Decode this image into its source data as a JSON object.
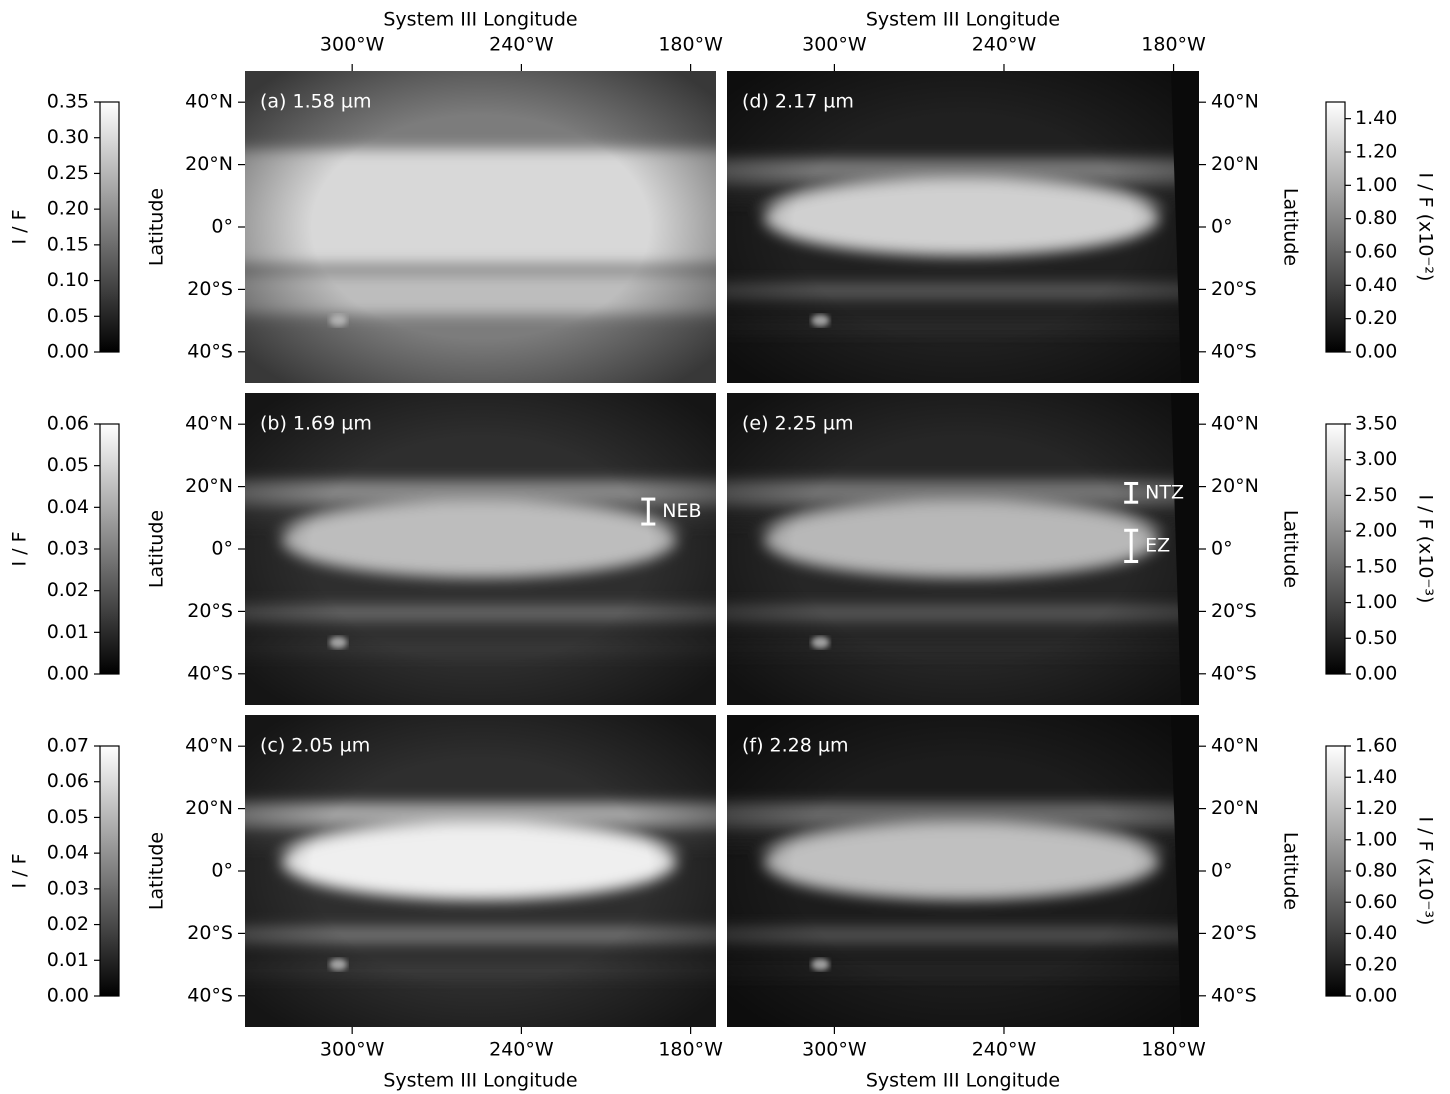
{
  "chart_data": {
    "type": "image-grid",
    "x_axis_label": "System III Longitude",
    "y_axis_label": "Latitude",
    "xlim": [
      338,
      171
    ],
    "xticks": [
      {
        "value": 300,
        "label": "300°W"
      },
      {
        "value": 240,
        "label": "240°W"
      },
      {
        "value": 180,
        "label": "180°W"
      }
    ],
    "ylim": [
      -50,
      50
    ],
    "yticks": [
      {
        "value": 40,
        "label": "40°N"
      },
      {
        "value": 20,
        "label": "20°N"
      },
      {
        "value": 0,
        "label": "0°"
      },
      {
        "value": -20,
        "label": "20°S"
      },
      {
        "value": -40,
        "label": "40°S"
      }
    ],
    "colormap": [
      "#000000",
      "#ffffff"
    ],
    "panels": [
      {
        "label": "(a) 1.58 µm",
        "colorbar_label": "I / F",
        "colorbar_lim": [
          0,
          0.35
        ],
        "colorbar_ticks": [
          {
            "value": 0,
            "label": "0.00"
          },
          {
            "value": 0.05,
            "label": "0.05"
          },
          {
            "value": 0.1,
            "label": "0.10"
          },
          {
            "value": 0.15,
            "label": "0.15"
          },
          {
            "value": 0.2,
            "label": "0.20"
          },
          {
            "value": 0.25,
            "label": "0.25"
          },
          {
            "value": 0.3,
            "label": "0.30"
          },
          {
            "value": 0.35,
            "label": "0.35"
          }
        ]
      },
      {
        "label": "(b) 1.69 µm",
        "colorbar_label": "I / F",
        "colorbar_lim": [
          0,
          0.06
        ],
        "colorbar_ticks": [
          {
            "value": 0,
            "label": "0.00"
          },
          {
            "value": 0.01,
            "label": "0.01"
          },
          {
            "value": 0.02,
            "label": "0.02"
          },
          {
            "value": 0.03,
            "label": "0.03"
          },
          {
            "value": 0.04,
            "label": "0.04"
          },
          {
            "value": 0.05,
            "label": "0.05"
          },
          {
            "value": 0.06,
            "label": "0.06"
          }
        ],
        "annotations": [
          {
            "text": "NEB",
            "lon": 195,
            "lat_range": [
              8,
              16
            ]
          }
        ]
      },
      {
        "label": "(c) 2.05 µm",
        "colorbar_label": "I / F",
        "colorbar_lim": [
          0,
          0.07
        ],
        "colorbar_ticks": [
          {
            "value": 0,
            "label": "0.00"
          },
          {
            "value": 0.01,
            "label": "0.01"
          },
          {
            "value": 0.02,
            "label": "0.02"
          },
          {
            "value": 0.03,
            "label": "0.03"
          },
          {
            "value": 0.04,
            "label": "0.04"
          },
          {
            "value": 0.05,
            "label": "0.05"
          },
          {
            "value": 0.06,
            "label": "0.06"
          },
          {
            "value": 0.07,
            "label": "0.07"
          }
        ]
      },
      {
        "label": "(d) 2.17 µm",
        "colorbar_label": "I / F (x10⁻²)",
        "colorbar_lim": [
          0,
          1.5
        ],
        "colorbar_ticks": [
          {
            "value": 0,
            "label": "0.00"
          },
          {
            "value": 0.2,
            "label": "0.20"
          },
          {
            "value": 0.4,
            "label": "0.40"
          },
          {
            "value": 0.6,
            "label": "0.60"
          },
          {
            "value": 0.8,
            "label": "0.80"
          },
          {
            "value": 1,
            "label": "1.00"
          },
          {
            "value": 1.2,
            "label": "1.20"
          },
          {
            "value": 1.4,
            "label": "1.40"
          }
        ]
      },
      {
        "label": "(e) 2.25 µm",
        "colorbar_label": "I / F (x10⁻³)",
        "colorbar_lim": [
          0,
          3.5
        ],
        "colorbar_ticks": [
          {
            "value": 0,
            "label": "0.00"
          },
          {
            "value": 0.5,
            "label": "0.50"
          },
          {
            "value": 1,
            "label": "1.00"
          },
          {
            "value": 1.5,
            "label": "1.50"
          },
          {
            "value": 2,
            "label": "2.00"
          },
          {
            "value": 2.5,
            "label": "2.50"
          },
          {
            "value": 3,
            "label": "3.00"
          },
          {
            "value": 3.5,
            "label": "3.50"
          }
        ],
        "annotations": [
          {
            "text": "NTZ",
            "lon": 195,
            "lat_range": [
              15,
              21
            ]
          },
          {
            "text": "EZ",
            "lon": 195,
            "lat_range": [
              -4,
              6
            ]
          }
        ]
      },
      {
        "label": "(f) 2.28 µm",
        "colorbar_label": "I / F (x10⁻³)",
        "colorbar_lim": [
          0,
          1.6
        ],
        "colorbar_ticks": [
          {
            "value": 0,
            "label": "0.00"
          },
          {
            "value": 0.2,
            "label": "0.20"
          },
          {
            "value": 0.4,
            "label": "0.40"
          },
          {
            "value": 0.6,
            "label": "0.60"
          },
          {
            "value": 0.8,
            "label": "0.80"
          },
          {
            "value": 1,
            "label": "1.00"
          },
          {
            "value": 1.2,
            "label": "1.20"
          },
          {
            "value": 1.4,
            "label": "1.40"
          },
          {
            "value": 1.6,
            "label": "1.60"
          }
        ]
      }
    ]
  }
}
